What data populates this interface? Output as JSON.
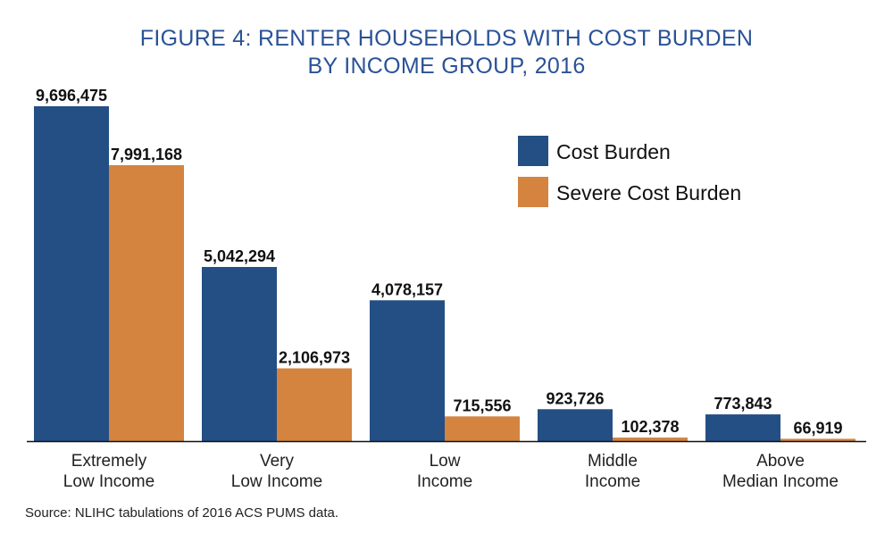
{
  "chart_data": {
    "type": "bar",
    "title_lines": [
      "FIGURE 4: RENTER HOUSEHOLDS WITH COST BURDEN",
      "BY INCOME GROUP, 2016"
    ],
    "categories": [
      [
        "Extremely",
        "Low Income"
      ],
      [
        "Very",
        "Low Income"
      ],
      [
        "Low",
        "Income"
      ],
      [
        "Middle",
        "Income"
      ],
      [
        "Above",
        "Median Income"
      ]
    ],
    "series": [
      {
        "name": "Cost Burden",
        "color": "#244f84",
        "values": [
          9696475,
          5042294,
          4078157,
          923726,
          773843
        ],
        "labels": [
          "9,696,475",
          "5,042,294",
          "4,078,157",
          "923,726",
          "773,843"
        ]
      },
      {
        "name": "Severe Cost Burden",
        "color": "#d4843f",
        "values": [
          7991168,
          2106973,
          715556,
          102378,
          66919
        ],
        "labels": [
          "7,991,168",
          "2,106,973",
          "715,556",
          "102,378",
          "66,919"
        ]
      }
    ],
    "ylim": [
      0,
      9696475
    ],
    "legend_position": "top-right",
    "grid": false
  },
  "source": "Source: NLIHC tabulations of 2016 ACS PUMS data."
}
